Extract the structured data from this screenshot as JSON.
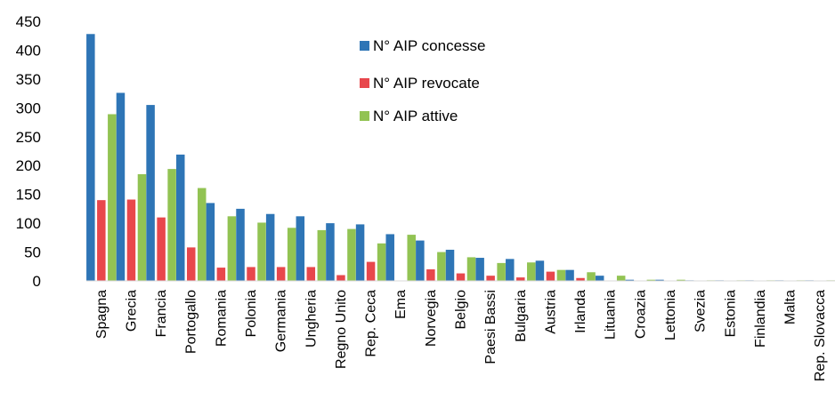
{
  "chart_data": {
    "type": "bar",
    "title": "",
    "xlabel": "",
    "ylabel": "",
    "ylim": [
      0,
      450
    ],
    "yticks": [
      0,
      50,
      100,
      150,
      200,
      250,
      300,
      350,
      400,
      450
    ],
    "grid": false,
    "legend_position": "top-center",
    "categories": [
      "Spagna",
      "Grecia",
      "Francia",
      "Portogallo",
      "Romania",
      "Polonia",
      "Germania",
      "Ungheria",
      "Regno Unito",
      "Rep. Ceca",
      "Ema",
      "Norvegia",
      "Belgio",
      "Paesi Bassi",
      "Bulgaria",
      "Austria",
      "Irlanda",
      "Lituania",
      "Croazia",
      "Lettonia",
      "Svezia",
      "Estonia",
      "Finlandia",
      "Malta",
      "Rep. Slovacca"
    ],
    "series": [
      {
        "name": "N° AIP concesse",
        "color": "#2E75B6",
        "values": [
          428,
          326,
          305,
          219,
          135,
          125,
          116,
          112,
          100,
          98,
          81,
          70,
          54,
          40,
          38,
          35,
          19,
          9,
          2,
          2,
          1,
          1,
          1,
          1,
          1
        ]
      },
      {
        "name": "N° AIP revocate",
        "color": "#E8474C",
        "values": [
          140,
          141,
          110,
          58,
          23,
          24,
          24,
          24,
          10,
          33,
          0,
          20,
          13,
          9,
          6,
          16,
          5,
          0,
          0,
          0,
          0,
          0,
          0,
          0,
          0
        ]
      },
      {
        "name": "N° AIP attive",
        "color": "#92C353",
        "values": [
          289,
          185,
          194,
          161,
          112,
          101,
          92,
          88,
          90,
          65,
          80,
          50,
          41,
          31,
          32,
          19,
          15,
          9,
          2,
          2,
          1,
          1,
          1,
          1,
          1
        ]
      }
    ]
  }
}
